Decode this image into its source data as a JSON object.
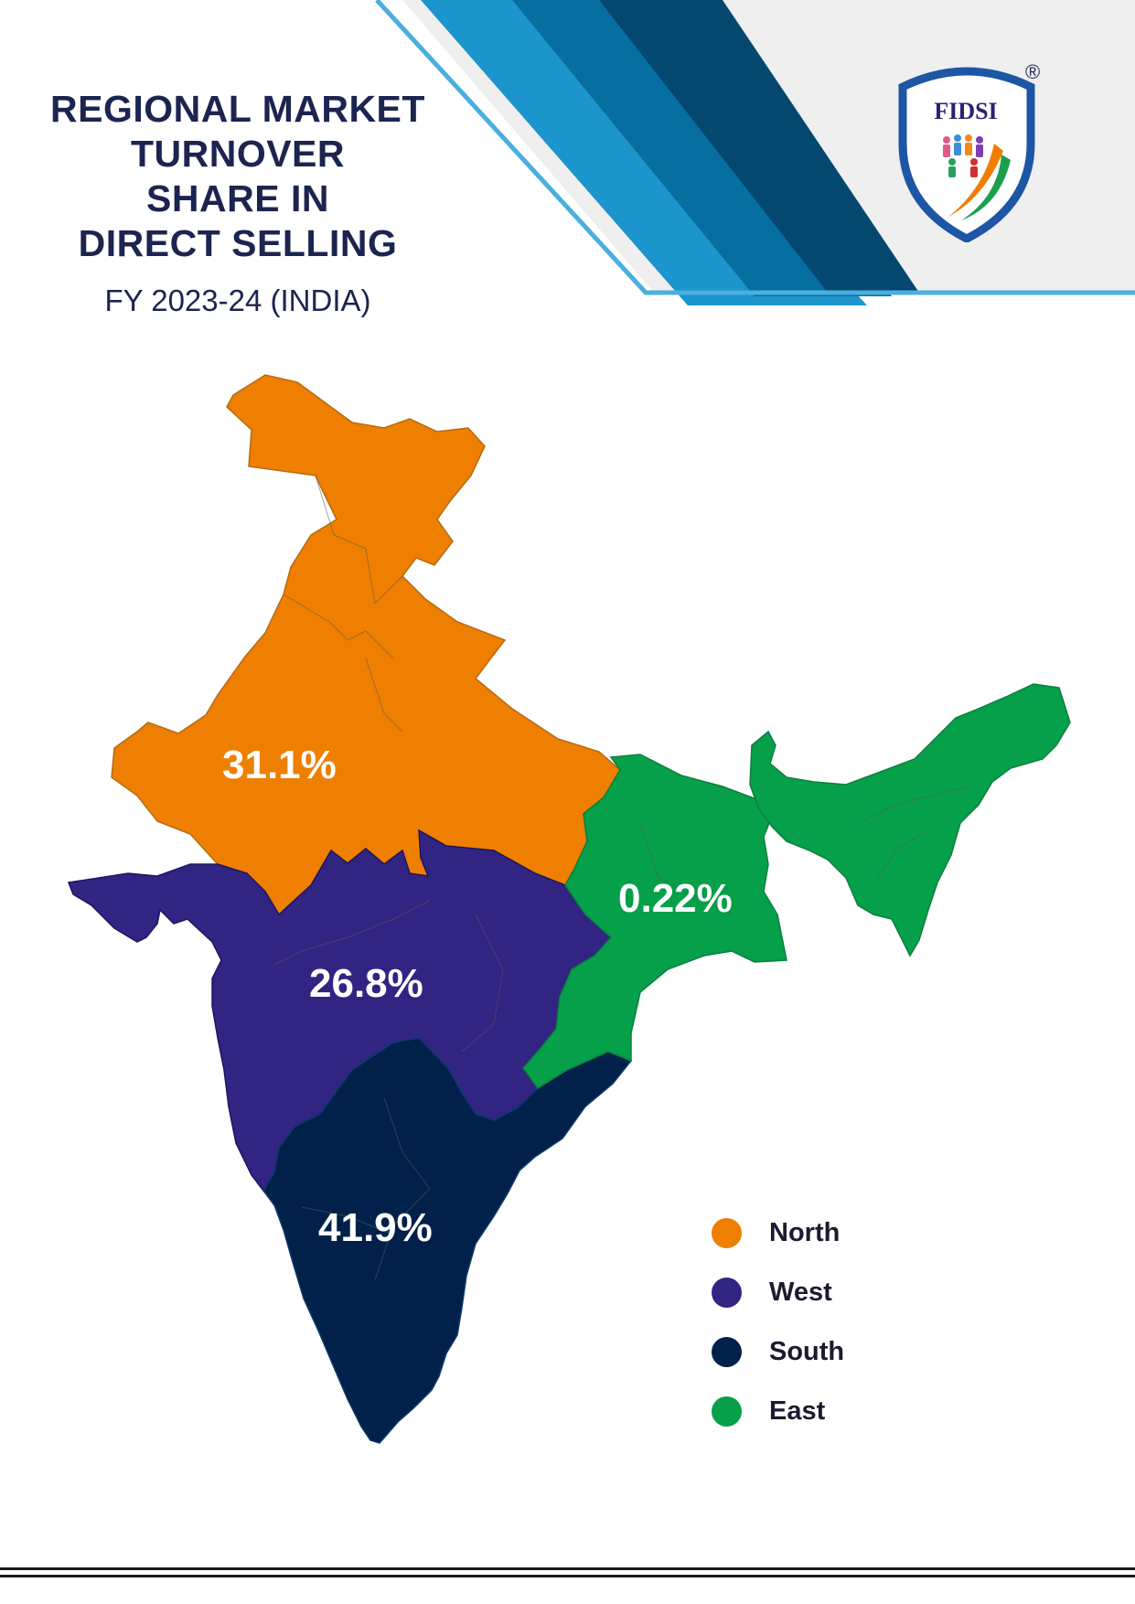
{
  "header": {
    "title_lines": [
      "REGIONAL MARKET",
      "TURNOVER",
      "SHARE IN",
      "DIRECT SELLING"
    ],
    "subtitle": "FY 2023-24 (INDIA)"
  },
  "logo": {
    "text": "FIDSI",
    "registered_mark": "®"
  },
  "regions": [
    {
      "id": "north",
      "name": "North",
      "share": "31.1%",
      "color": "#ee7f00"
    },
    {
      "id": "west",
      "name": "West",
      "share": "26.8%",
      "color": "#312482"
    },
    {
      "id": "south",
      "name": "South",
      "share": "41.9%",
      "color": "#01214a"
    },
    {
      "id": "east",
      "name": "East",
      "share": "0.22%",
      "color": "#05a049"
    }
  ],
  "colors": {
    "title": "#1c2450",
    "stripe_dark": "#04486f",
    "stripe_mid": "#066ea0",
    "stripe_light": "#1b95cb",
    "stripe_line": "#4aaee0",
    "header_gray": "#efefef",
    "logo_blue": "#1d56a5",
    "logo_text": "#2c2170"
  }
}
